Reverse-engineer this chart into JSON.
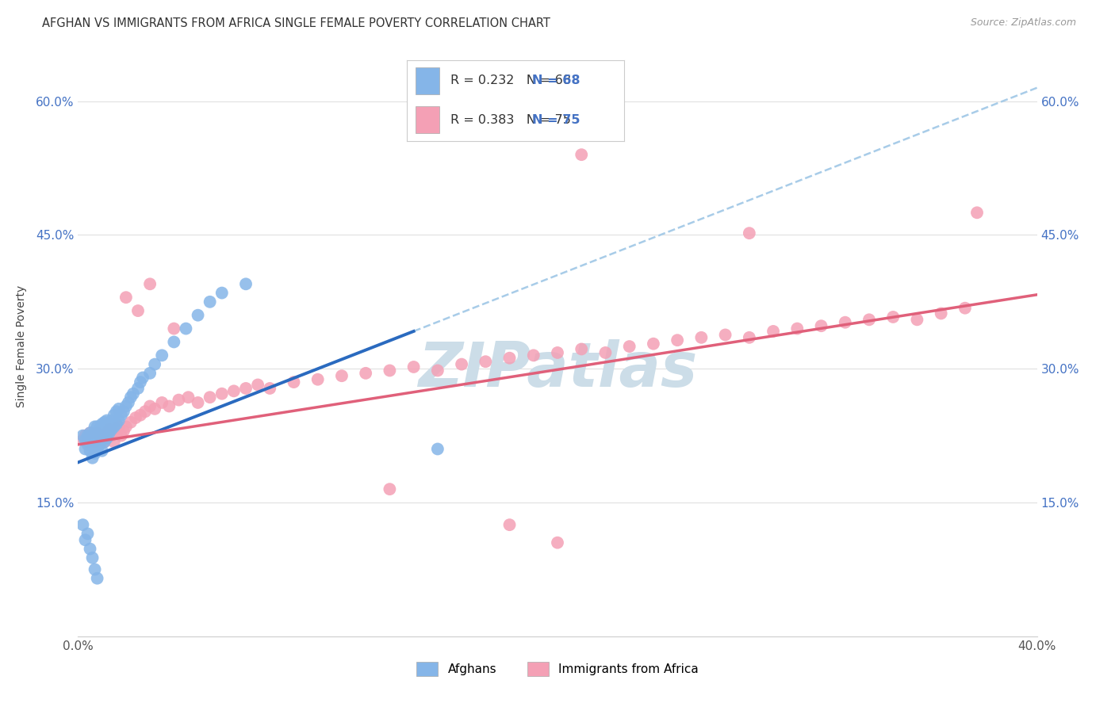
{
  "title": "AFGHAN VS IMMIGRANTS FROM AFRICA SINGLE FEMALE POVERTY CORRELATION CHART",
  "source": "Source: ZipAtlas.com",
  "ylabel": "Single Female Poverty",
  "xmin": 0.0,
  "xmax": 0.4,
  "ymin": 0.0,
  "ymax": 0.65,
  "yticks": [
    0.15,
    0.3,
    0.45,
    0.6
  ],
  "ytick_labels": [
    "15.0%",
    "30.0%",
    "45.0%",
    "60.0%"
  ],
  "xticks": [
    0.0,
    0.1,
    0.2,
    0.3,
    0.4
  ],
  "xtick_labels": [
    "0.0%",
    "",
    "",
    "",
    "40.0%"
  ],
  "afghans_color": "#85b5e8",
  "africa_color": "#f4a0b5",
  "trendline_blue_solid": "#2a6abf",
  "trendline_blue_dash": "#a8cce8",
  "trendline_pink": "#e0607a",
  "watermark_color": "#ccdde8",
  "background_color": "#ffffff",
  "grid_color": "#e0e0e0",
  "title_color": "#333333",
  "source_color": "#999999",
  "tick_color": "#4472c4",
  "afghans_x": [
    0.002,
    0.003,
    0.003,
    0.004,
    0.004,
    0.005,
    0.005,
    0.005,
    0.006,
    0.006,
    0.006,
    0.007,
    0.007,
    0.007,
    0.007,
    0.008,
    0.008,
    0.008,
    0.008,
    0.009,
    0.009,
    0.009,
    0.01,
    0.01,
    0.01,
    0.01,
    0.011,
    0.011,
    0.011,
    0.012,
    0.012,
    0.012,
    0.013,
    0.013,
    0.014,
    0.014,
    0.015,
    0.015,
    0.016,
    0.016,
    0.017,
    0.017,
    0.018,
    0.019,
    0.02,
    0.021,
    0.022,
    0.023,
    0.025,
    0.026,
    0.027,
    0.03,
    0.032,
    0.035,
    0.04,
    0.045,
    0.05,
    0.055,
    0.06,
    0.07,
    0.002,
    0.003,
    0.004,
    0.005,
    0.006,
    0.007,
    0.008,
    0.15
  ],
  "afghans_y": [
    0.225,
    0.21,
    0.22,
    0.215,
    0.225,
    0.208,
    0.218,
    0.228,
    0.2,
    0.215,
    0.225,
    0.205,
    0.218,
    0.228,
    0.235,
    0.21,
    0.22,
    0.228,
    0.235,
    0.215,
    0.222,
    0.232,
    0.208,
    0.22,
    0.228,
    0.238,
    0.218,
    0.228,
    0.24,
    0.222,
    0.232,
    0.242,
    0.228,
    0.238,
    0.232,
    0.242,
    0.235,
    0.248,
    0.238,
    0.252,
    0.242,
    0.255,
    0.248,
    0.252,
    0.258,
    0.262,
    0.268,
    0.272,
    0.278,
    0.285,
    0.29,
    0.295,
    0.305,
    0.315,
    0.33,
    0.345,
    0.36,
    0.375,
    0.385,
    0.395,
    0.125,
    0.108,
    0.115,
    0.098,
    0.088,
    0.075,
    0.065,
    0.21
  ],
  "africa_x": [
    0.002,
    0.003,
    0.004,
    0.005,
    0.006,
    0.007,
    0.008,
    0.009,
    0.01,
    0.011,
    0.012,
    0.013,
    0.014,
    0.015,
    0.016,
    0.017,
    0.018,
    0.019,
    0.02,
    0.022,
    0.024,
    0.026,
    0.028,
    0.03,
    0.032,
    0.035,
    0.038,
    0.042,
    0.046,
    0.05,
    0.055,
    0.06,
    0.065,
    0.07,
    0.075,
    0.08,
    0.09,
    0.1,
    0.11,
    0.12,
    0.13,
    0.14,
    0.15,
    0.16,
    0.17,
    0.18,
    0.19,
    0.2,
    0.21,
    0.22,
    0.23,
    0.24,
    0.25,
    0.26,
    0.27,
    0.28,
    0.29,
    0.3,
    0.31,
    0.32,
    0.33,
    0.34,
    0.35,
    0.36,
    0.37,
    0.02,
    0.025,
    0.03,
    0.04,
    0.13,
    0.18,
    0.2,
    0.21,
    0.28,
    0.375
  ],
  "africa_y": [
    0.22,
    0.225,
    0.218,
    0.228,
    0.222,
    0.218,
    0.228,
    0.222,
    0.225,
    0.218,
    0.228,
    0.232,
    0.225,
    0.218,
    0.228,
    0.235,
    0.225,
    0.23,
    0.235,
    0.24,
    0.245,
    0.248,
    0.252,
    0.258,
    0.255,
    0.262,
    0.258,
    0.265,
    0.268,
    0.262,
    0.268,
    0.272,
    0.275,
    0.278,
    0.282,
    0.278,
    0.285,
    0.288,
    0.292,
    0.295,
    0.298,
    0.302,
    0.298,
    0.305,
    0.308,
    0.312,
    0.315,
    0.318,
    0.322,
    0.318,
    0.325,
    0.328,
    0.332,
    0.335,
    0.338,
    0.335,
    0.342,
    0.345,
    0.348,
    0.352,
    0.355,
    0.358,
    0.355,
    0.362,
    0.368,
    0.38,
    0.365,
    0.395,
    0.345,
    0.165,
    0.125,
    0.105,
    0.54,
    0.452,
    0.475
  ],
  "blue_trend_x_solid_start": 0.0,
  "blue_trend_x_solid_end": 0.14,
  "blue_trend_x_dash_start": 0.14,
  "blue_trend_x_dash_end": 0.4,
  "blue_trend_slope": 1.05,
  "blue_trend_intercept": 0.195,
  "pink_trend_slope": 0.42,
  "pink_trend_intercept": 0.215
}
